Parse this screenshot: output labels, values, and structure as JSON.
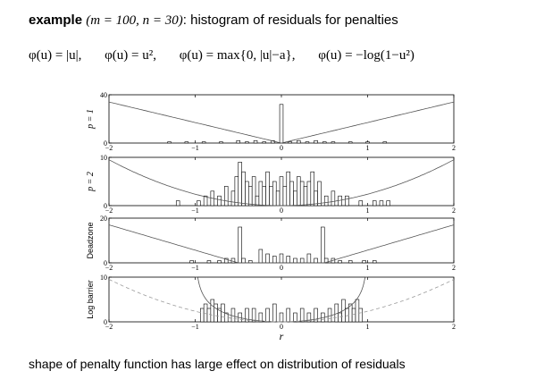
{
  "header": {
    "example_word": "example",
    "params": "(m = 100, n = 30)",
    "rest": ": histogram of residuals for penalties"
  },
  "formulas": [
    "φ(u) = |u|,",
    "φ(u) = u²,",
    "φ(u) = max{0, |u|−a},",
    "φ(u) = −log(1−u²)"
  ],
  "footer": "shape of penalty function has large effect on distribution of residuals",
  "chart_data": [
    {
      "type": "bar",
      "ylabel": "p = 1",
      "xlabel": "",
      "xlim": [
        -2,
        2
      ],
      "ylim": [
        0,
        40
      ],
      "xticks": [
        "−2",
        "−1",
        "0",
        "1",
        "2"
      ],
      "yticks": [
        "0",
        "40"
      ],
      "bin_width": 0.04,
      "bins": [
        {
          "x": -1.3,
          "y": 1
        },
        {
          "x": -1.1,
          "y": 1
        },
        {
          "x": -0.9,
          "y": 1
        },
        {
          "x": -0.7,
          "y": 1
        },
        {
          "x": -0.5,
          "y": 2
        },
        {
          "x": -0.4,
          "y": 1
        },
        {
          "x": -0.3,
          "y": 2
        },
        {
          "x": -0.2,
          "y": 1
        },
        {
          "x": -0.1,
          "y": 2
        },
        {
          "x": 0.0,
          "y": 32
        },
        {
          "x": 0.1,
          "y": 1
        },
        {
          "x": 0.2,
          "y": 2
        },
        {
          "x": 0.3,
          "y": 1
        },
        {
          "x": 0.4,
          "y": 2
        },
        {
          "x": 0.5,
          "y": 1
        },
        {
          "x": 0.6,
          "y": 1
        },
        {
          "x": 0.8,
          "y": 1
        },
        {
          "x": 1.0,
          "y": 1
        },
        {
          "x": 1.2,
          "y": 1
        }
      ],
      "penalty_curve": "abs"
    },
    {
      "type": "bar",
      "ylabel": "p = 2",
      "xlabel": "",
      "xlim": [
        -2,
        2
      ],
      "ylim": [
        0,
        10
      ],
      "xticks": [
        "−2",
        "−1",
        "0",
        "1",
        "2"
      ],
      "yticks": [
        "0",
        "10"
      ],
      "bin_width": 0.04,
      "bins": [
        {
          "x": -1.2,
          "y": 1
        },
        {
          "x": -0.96,
          "y": 1
        },
        {
          "x": -0.88,
          "y": 2
        },
        {
          "x": -0.8,
          "y": 3
        },
        {
          "x": -0.72,
          "y": 2
        },
        {
          "x": -0.64,
          "y": 4
        },
        {
          "x": -0.56,
          "y": 3
        },
        {
          "x": -0.52,
          "y": 6
        },
        {
          "x": -0.48,
          "y": 9
        },
        {
          "x": -0.44,
          "y": 7
        },
        {
          "x": -0.4,
          "y": 5
        },
        {
          "x": -0.36,
          "y": 4
        },
        {
          "x": -0.32,
          "y": 6
        },
        {
          "x": -0.28,
          "y": 2
        },
        {
          "x": -0.24,
          "y": 5
        },
        {
          "x": -0.2,
          "y": 4
        },
        {
          "x": -0.16,
          "y": 7
        },
        {
          "x": -0.12,
          "y": 4
        },
        {
          "x": -0.08,
          "y": 5
        },
        {
          "x": -0.04,
          "y": 3
        },
        {
          "x": 0.0,
          "y": 6
        },
        {
          "x": 0.04,
          "y": 4
        },
        {
          "x": 0.08,
          "y": 7
        },
        {
          "x": 0.12,
          "y": 5
        },
        {
          "x": 0.16,
          "y": 3
        },
        {
          "x": 0.2,
          "y": 6
        },
        {
          "x": 0.24,
          "y": 5
        },
        {
          "x": 0.28,
          "y": 4
        },
        {
          "x": 0.32,
          "y": 5
        },
        {
          "x": 0.36,
          "y": 7
        },
        {
          "x": 0.4,
          "y": 3
        },
        {
          "x": 0.44,
          "y": 5
        },
        {
          "x": 0.52,
          "y": 2
        },
        {
          "x": 0.6,
          "y": 3
        },
        {
          "x": 0.68,
          "y": 2
        },
        {
          "x": 0.76,
          "y": 2
        },
        {
          "x": 0.92,
          "y": 1
        },
        {
          "x": 1.08,
          "y": 1
        },
        {
          "x": 1.16,
          "y": 1
        },
        {
          "x": 1.24,
          "y": 1
        }
      ],
      "penalty_curve": "square"
    },
    {
      "type": "bar",
      "ylabel": "Deadzone",
      "xlabel": "",
      "xlim": [
        -2,
        2
      ],
      "ylim": [
        0,
        20
      ],
      "xticks": [
        "−2",
        "−1",
        "0",
        "1",
        "2"
      ],
      "yticks": [
        "0",
        "20"
      ],
      "bin_width": 0.04,
      "bins": [
        {
          "x": -1.04,
          "y": 1
        },
        {
          "x": -0.84,
          "y": 1
        },
        {
          "x": -0.72,
          "y": 1
        },
        {
          "x": -0.64,
          "y": 2
        },
        {
          "x": -0.56,
          "y": 2
        },
        {
          "x": -0.48,
          "y": 16
        },
        {
          "x": -0.44,
          "y": 2
        },
        {
          "x": -0.36,
          "y": 1
        },
        {
          "x": -0.24,
          "y": 6
        },
        {
          "x": -0.16,
          "y": 4
        },
        {
          "x": -0.08,
          "y": 3
        },
        {
          "x": 0.0,
          "y": 4
        },
        {
          "x": 0.08,
          "y": 3
        },
        {
          "x": 0.16,
          "y": 2
        },
        {
          "x": 0.24,
          "y": 2
        },
        {
          "x": 0.32,
          "y": 4
        },
        {
          "x": 0.4,
          "y": 2
        },
        {
          "x": 0.48,
          "y": 16
        },
        {
          "x": 0.52,
          "y": 2
        },
        {
          "x": 0.6,
          "y": 2
        },
        {
          "x": 0.68,
          "y": 1
        },
        {
          "x": 0.8,
          "y": 1
        },
        {
          "x": 0.96,
          "y": 1
        },
        {
          "x": 1.08,
          "y": 1
        }
      ],
      "penalty_curve": "deadzone",
      "deadzone_a": 0.5
    },
    {
      "type": "bar",
      "ylabel": "Log barrier",
      "xlabel": "r",
      "xlim": [
        -2,
        2
      ],
      "ylim": [
        0,
        10
      ],
      "xticks": [
        "−2",
        "−1",
        "0",
        "1",
        "2"
      ],
      "yticks": [
        "0",
        "10"
      ],
      "bin_width": 0.04,
      "bins": [
        {
          "x": -0.92,
          "y": 3
        },
        {
          "x": -0.88,
          "y": 4
        },
        {
          "x": -0.84,
          "y": 3
        },
        {
          "x": -0.8,
          "y": 5
        },
        {
          "x": -0.76,
          "y": 4
        },
        {
          "x": -0.72,
          "y": 3
        },
        {
          "x": -0.68,
          "y": 4
        },
        {
          "x": -0.64,
          "y": 2
        },
        {
          "x": -0.56,
          "y": 3
        },
        {
          "x": -0.48,
          "y": 2
        },
        {
          "x": -0.4,
          "y": 3
        },
        {
          "x": -0.32,
          "y": 3
        },
        {
          "x": -0.24,
          "y": 2
        },
        {
          "x": -0.16,
          "y": 3
        },
        {
          "x": -0.08,
          "y": 4
        },
        {
          "x": 0.0,
          "y": 2
        },
        {
          "x": 0.08,
          "y": 3
        },
        {
          "x": 0.16,
          "y": 2
        },
        {
          "x": 0.24,
          "y": 3
        },
        {
          "x": 0.32,
          "y": 2
        },
        {
          "x": 0.4,
          "y": 3
        },
        {
          "x": 0.48,
          "y": 2
        },
        {
          "x": 0.56,
          "y": 3
        },
        {
          "x": 0.64,
          "y": 4
        },
        {
          "x": 0.68,
          "y": 2
        },
        {
          "x": 0.72,
          "y": 5
        },
        {
          "x": 0.76,
          "y": 3
        },
        {
          "x": 0.8,
          "y": 4
        },
        {
          "x": 0.84,
          "y": 3
        },
        {
          "x": 0.88,
          "y": 5
        },
        {
          "x": 0.92,
          "y": 3
        }
      ],
      "penalty_curve": "logbarrier",
      "reference_curve": "square-dashed"
    }
  ]
}
